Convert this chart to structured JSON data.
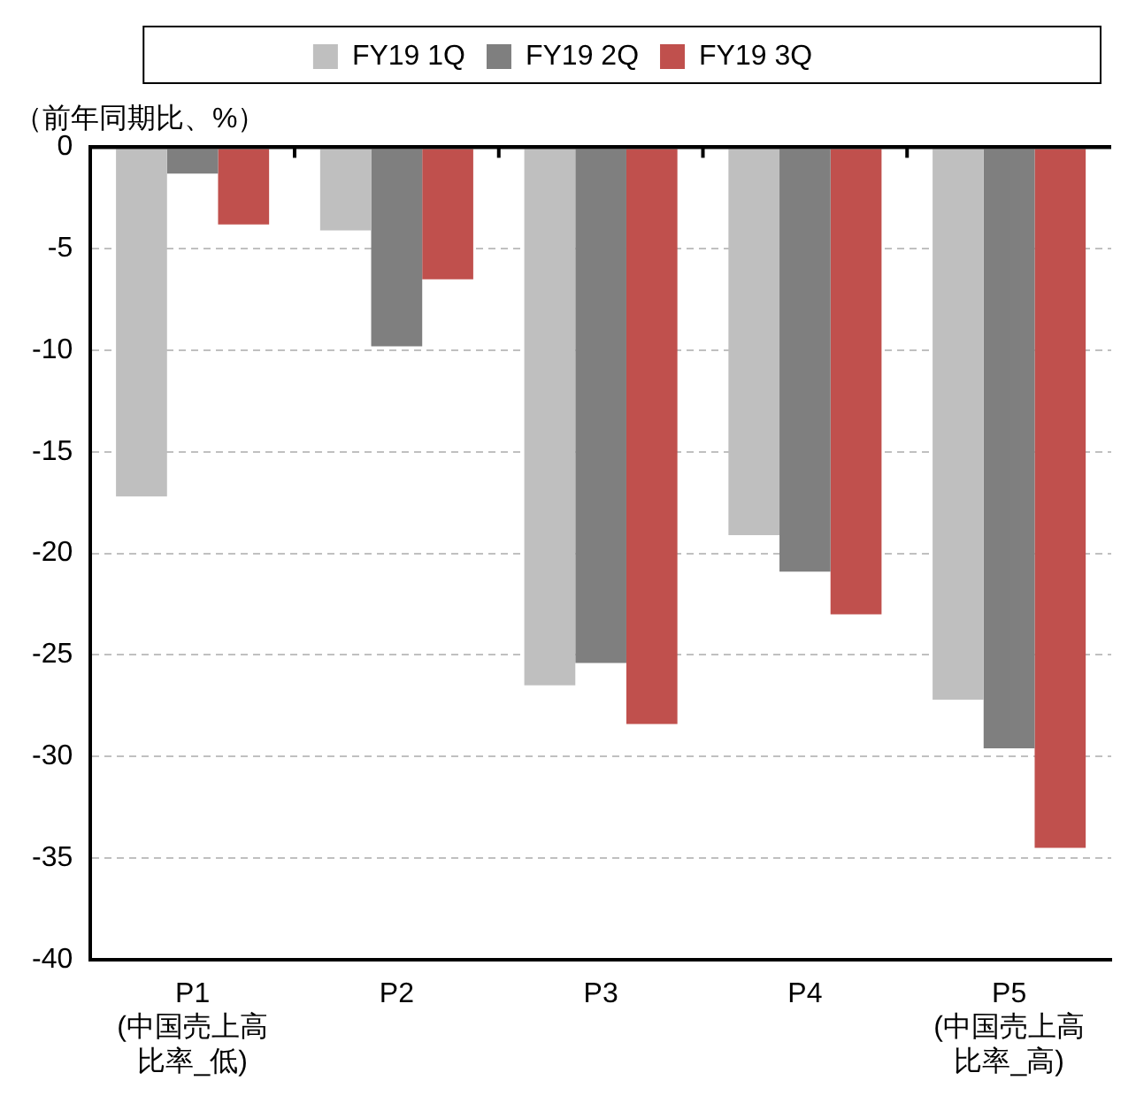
{
  "chart_data": {
    "type": "bar",
    "ylabel": "（前年同期比、%）",
    "categories": [
      "P1\n(中国売上高比率_低)",
      "P2",
      "P3",
      "P4",
      "P5\n(中国売上高比率_高)"
    ],
    "series": [
      {
        "name": "FY19 1Q",
        "color": "#bfbfbf",
        "values": [
          -17.2,
          -4.1,
          -26.5,
          -19.1,
          -27.2
        ]
      },
      {
        "name": "FY19 2Q",
        "color": "#7f7f7f",
        "values": [
          -1.3,
          -9.8,
          -25.4,
          -20.9,
          -29.6
        ]
      },
      {
        "name": "FY19 3Q",
        "color": "#c0504d",
        "values": [
          -3.8,
          -6.5,
          -28.4,
          -23.0,
          -34.5
        ]
      }
    ],
    "ylim": [
      -40,
      0
    ],
    "yticks": [
      0,
      -5,
      -10,
      -15,
      -20,
      -25,
      -30,
      -35,
      -40
    ],
    "grid": "y",
    "legend": "top"
  }
}
